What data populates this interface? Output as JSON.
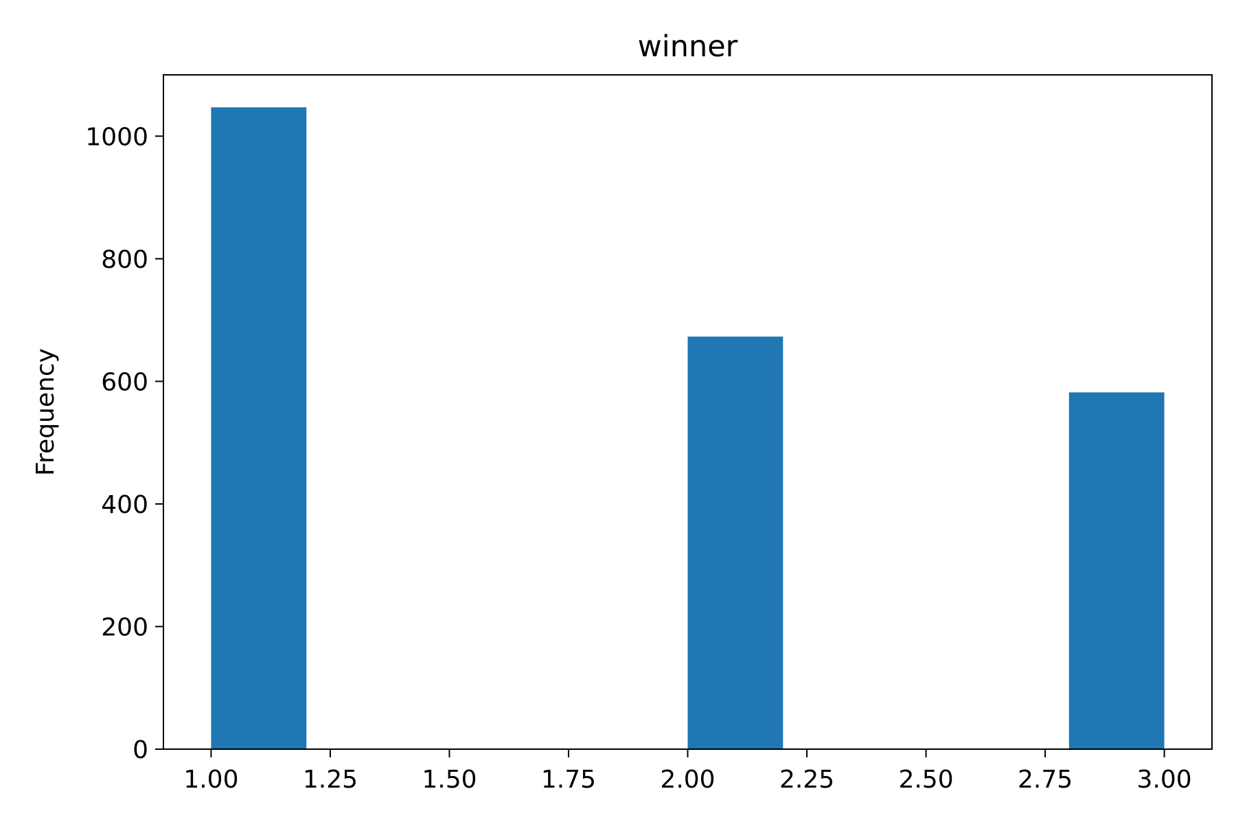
{
  "chart_data": {
    "type": "bar",
    "title": "winner",
    "xlabel": "",
    "ylabel": "Frequency",
    "xlim": [
      0.9,
      3.1
    ],
    "ylim": [
      0,
      1100
    ],
    "x_ticks": [
      1.0,
      1.25,
      1.5,
      1.75,
      2.0,
      2.25,
      2.5,
      2.75,
      3.0
    ],
    "x_tick_labels": [
      "1.00",
      "1.25",
      "1.50",
      "1.75",
      "2.00",
      "2.25",
      "2.50",
      "2.75",
      "3.00"
    ],
    "y_ticks": [
      0,
      200,
      400,
      600,
      800,
      1000
    ],
    "y_tick_labels": [
      "0",
      "200",
      "400",
      "600",
      "800",
      "1000"
    ],
    "bins": [
      {
        "x0": 1.0,
        "x1": 1.2,
        "value": 1047
      },
      {
        "x0": 2.0,
        "x1": 2.2,
        "value": 673
      },
      {
        "x0": 2.8,
        "x1": 3.0,
        "value": 582
      }
    ],
    "bar_color": "#1f77b4",
    "grid": false,
    "legend": "none"
  }
}
